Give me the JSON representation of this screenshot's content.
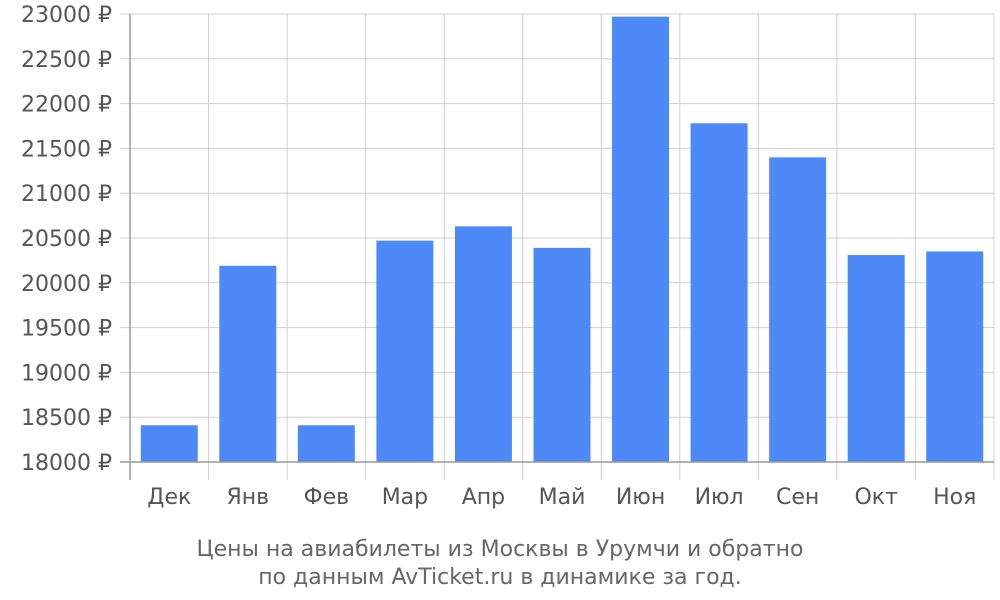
{
  "chart_data": {
    "type": "bar",
    "categories": [
      "Дек",
      "Янв",
      "Фев",
      "Мар",
      "Апр",
      "Май",
      "Июн",
      "Июл",
      "Сен",
      "Окт",
      "Ноя"
    ],
    "values": [
      18410,
      20190,
      18410,
      20470,
      20630,
      20390,
      22970,
      21780,
      21400,
      20310,
      20350
    ],
    "ylim": [
      18000,
      23000
    ],
    "ytick_step": 500,
    "ytick_labels": [
      "18000 ₽",
      "18500 ₽",
      "19000 ₽",
      "19500 ₽",
      "20000 ₽",
      "20500 ₽",
      "21000 ₽",
      "21500 ₽",
      "22000 ₽",
      "22500 ₽",
      "23000 ₽"
    ],
    "caption_lines": [
      "Цены на авиабилеты из Москвы в Урумчи и обратно",
      "по данным AvTicket.ru в динамике за год."
    ],
    "grid": true,
    "colors": {
      "bar": "#4d8af8",
      "grid": "#d0d0d0",
      "axis": "#999999",
      "text": "#555555"
    }
  }
}
